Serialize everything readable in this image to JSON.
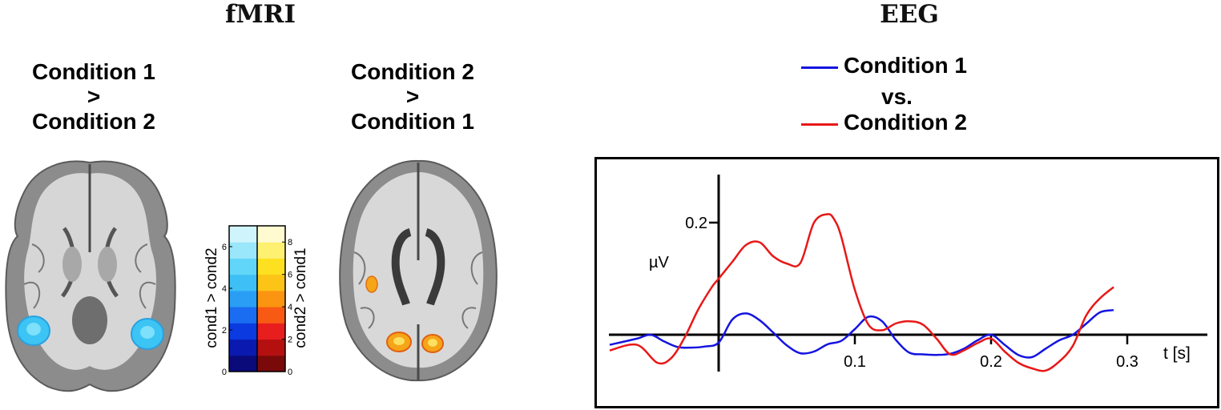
{
  "fmri": {
    "title": "fMRI",
    "panel_left": {
      "line1": "Condition 1",
      "line2": ">",
      "line3": "Condition 2"
    },
    "panel_right": {
      "line1": "Condition 2",
      "line2": ">",
      "line3": "Condition 1"
    },
    "colorbar_left": {
      "label": "cond1 > cond2",
      "ticks": [
        "0",
        "2",
        "4",
        "6"
      ],
      "colors": [
        "#0a0a7a",
        "#0a1ab0",
        "#0a3ae0",
        "#1a6cf0",
        "#2a9ef4",
        "#3ec0f6",
        "#62d6f8",
        "#9ae6fa",
        "#d0f4fc"
      ]
    },
    "colorbar_right": {
      "label": "cond2 > cond1",
      "ticks": [
        "0",
        "2",
        "4",
        "6",
        "8"
      ],
      "colors": [
        "#7a0a0a",
        "#b41010",
        "#e81e1e",
        "#f85a14",
        "#fb9410",
        "#fcc416",
        "#fde020",
        "#fef070",
        "#fffad0"
      ]
    },
    "activation_colors": {
      "cond1": "#3cc4f4",
      "cond2": "#f6a418"
    }
  },
  "eeg": {
    "title": "EEG",
    "legend": {
      "series1": "Condition 1",
      "between": "vs.",
      "series2": "Condition 2"
    },
    "colors": {
      "condition1": "#1414e0",
      "condition2": "#e81818"
    }
  },
  "chart_data": {
    "type": "line",
    "title": "EEG",
    "xlabel": "t [s]",
    "ylabel": "µV",
    "x_ticks": [
      "0.1",
      "0.2",
      "0.3"
    ],
    "y_ticks": [
      "0.2"
    ],
    "xlim": [
      -0.08,
      0.36
    ],
    "ylim": [
      -0.07,
      0.24
    ],
    "grid": false,
    "legend_position": "top",
    "series": [
      {
        "name": "Condition 1",
        "x": [
          -0.08,
          -0.06,
          -0.05,
          -0.04,
          -0.03,
          -0.02,
          -0.01,
          0.0,
          0.01,
          0.02,
          0.03,
          0.04,
          0.05,
          0.06,
          0.07,
          0.08,
          0.09,
          0.1,
          0.11,
          0.12,
          0.13,
          0.14,
          0.15,
          0.16,
          0.17,
          0.18,
          0.19,
          0.2,
          0.21,
          0.22,
          0.23,
          0.24,
          0.25,
          0.26,
          0.27,
          0.28,
          0.29
        ],
        "y": [
          -0.018,
          -0.007,
          0.0,
          -0.012,
          -0.022,
          -0.023,
          -0.021,
          -0.014,
          0.027,
          0.038,
          0.026,
          0.004,
          -0.019,
          -0.033,
          -0.03,
          -0.017,
          -0.011,
          0.01,
          0.032,
          0.024,
          -0.009,
          -0.032,
          -0.035,
          -0.036,
          -0.034,
          -0.025,
          -0.01,
          0.0,
          -0.018,
          -0.036,
          -0.04,
          -0.025,
          -0.01,
          0.0,
          0.02,
          0.04,
          0.044
        ]
      },
      {
        "name": "Condition 2",
        "x": [
          -0.08,
          -0.06,
          -0.045,
          -0.035,
          -0.025,
          -0.015,
          -0.005,
          0.0,
          0.01,
          0.02,
          0.03,
          0.04,
          0.05,
          0.06,
          0.07,
          0.08,
          0.085,
          0.09,
          0.1,
          0.11,
          0.12,
          0.13,
          0.14,
          0.15,
          0.16,
          0.17,
          0.18,
          0.19,
          0.2,
          0.21,
          0.22,
          0.23,
          0.24,
          0.25,
          0.26,
          0.27,
          0.28,
          0.29
        ],
        "y": [
          -0.028,
          -0.018,
          -0.05,
          -0.042,
          -0.005,
          0.045,
          0.085,
          0.1,
          0.13,
          0.16,
          0.165,
          0.14,
          0.127,
          0.128,
          0.2,
          0.215,
          0.205,
          0.175,
          0.08,
          0.018,
          0.008,
          0.02,
          0.024,
          0.018,
          -0.007,
          -0.035,
          -0.028,
          -0.015,
          -0.007,
          -0.03,
          -0.05,
          -0.06,
          -0.064,
          -0.048,
          -0.02,
          0.035,
          0.065,
          0.085
        ]
      }
    ]
  }
}
